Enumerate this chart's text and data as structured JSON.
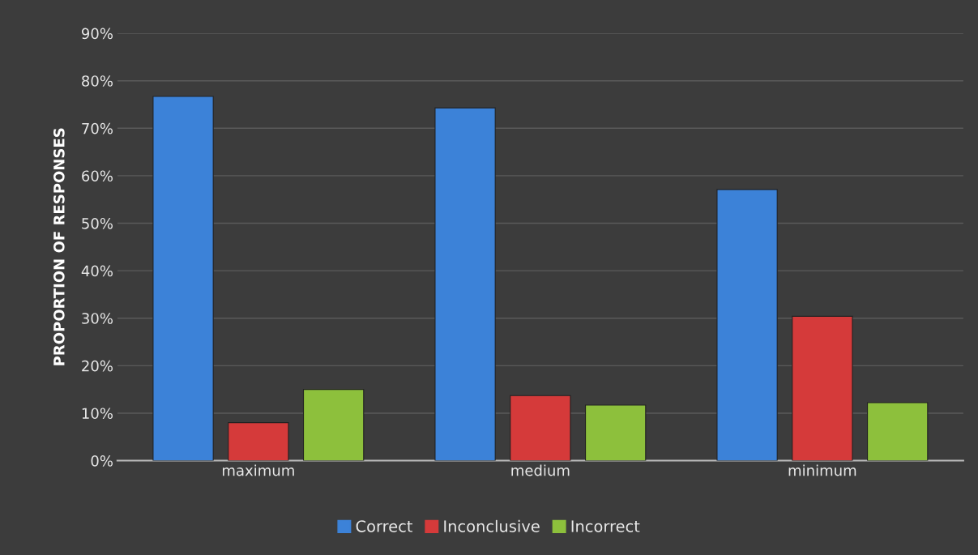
{
  "chart_data": {
    "type": "bar",
    "ylabel": "PROPORTION OF RESPONSES",
    "categories": [
      "maximum",
      "medium",
      "minimum"
    ],
    "series": [
      {
        "name": "Correct",
        "color": "#3c82d8",
        "values": [
          76.7,
          74.3,
          57.1
        ]
      },
      {
        "name": "Inconclusive",
        "color": "#d53a3a",
        "values": [
          8.0,
          13.7,
          30.4
        ]
      },
      {
        "name": "Incorrect",
        "color": "#8dc03c",
        "values": [
          15.0,
          11.7,
          12.2
        ]
      }
    ],
    "ylim": [
      0,
      90
    ],
    "yticks": [
      {
        "value": 0,
        "label": "0%"
      },
      {
        "value": 10,
        "label": "10%"
      },
      {
        "value": 20,
        "label": "20%"
      },
      {
        "value": 30,
        "label": "30%"
      },
      {
        "value": 40,
        "label": "40%"
      },
      {
        "value": 50,
        "label": "50%"
      },
      {
        "value": 60,
        "label": "60%"
      },
      {
        "value": 70,
        "label": "70%"
      },
      {
        "value": 80,
        "label": "80%"
      },
      {
        "value": 90,
        "label": "90%"
      }
    ],
    "grid": "y",
    "legend": "bottom"
  }
}
